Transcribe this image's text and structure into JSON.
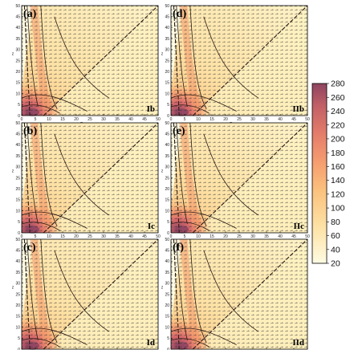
{
  "chart_data": {
    "type": "heatmap",
    "figure": "six panel filled contour plot with vector field overlay",
    "panels": [
      {
        "label": "(a)",
        "case": "Ib"
      },
      {
        "label": "(b)",
        "case": "Ic"
      },
      {
        "label": "(c)",
        "case": "Id"
      },
      {
        "label": "(d)",
        "case": "IIb"
      },
      {
        "label": "(e)",
        "case": "IIc"
      },
      {
        "label": "(f)",
        "case": "IId"
      }
    ],
    "xlabel": "R",
    "ylabel": "z",
    "x_ticks": [
      0,
      5,
      10,
      15,
      20,
      25,
      30,
      35,
      40,
      45,
      50
    ],
    "y_ticks": [
      0,
      5,
      10,
      15,
      20,
      25,
      30,
      35,
      40,
      45,
      50
    ],
    "xlim": [
      0,
      50
    ],
    "ylim": [
      0,
      50
    ],
    "colorbar": {
      "ticks": [
        280,
        260,
        240,
        220,
        200,
        180,
        160,
        140,
        120,
        100,
        80,
        60,
        40,
        20
      ],
      "range": [
        20,
        280
      ],
      "colors": {
        "low": "#fefbe2",
        "mid_low": "#fde2a6",
        "mid": "#fbc27e",
        "mid_high": "#f3976a",
        "high": "#d86a6a",
        "top": "#9b4a64"
      }
    },
    "grid": false
  }
}
